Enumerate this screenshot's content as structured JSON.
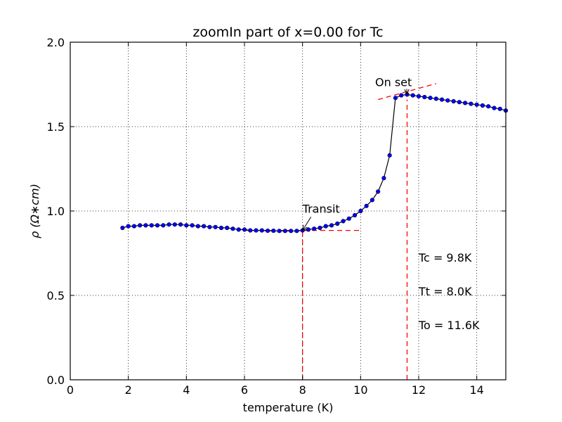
{
  "chart_data": {
    "type": "line",
    "title": "zoomIn part of x=0.00 for Tc",
    "xlabel": "temperature (K)",
    "ylabel": "ρ (Ω∗cm)",
    "xlim": [
      0,
      15
    ],
    "ylim": [
      0.0,
      2.0
    ],
    "xticks": [
      0,
      2,
      4,
      6,
      8,
      10,
      12,
      14
    ],
    "xtick_labels": [
      "0",
      "2",
      "4",
      "6",
      "8",
      "10",
      "12",
      "14"
    ],
    "yticks": [
      0.0,
      0.5,
      1.0,
      1.5,
      2.0
    ],
    "ytick_labels": [
      "0.0",
      "0.5",
      "1.0",
      "1.5",
      "2.0"
    ],
    "grid": true,
    "series": [
      {
        "color": "#0000ff",
        "line_color": "#000000",
        "marker": "circle",
        "x": [
          1.8,
          2.0,
          2.2,
          2.4,
          2.6,
          2.8,
          3.0,
          3.2,
          3.4,
          3.6,
          3.8,
          4.0,
          4.2,
          4.4,
          4.6,
          4.8,
          5.0,
          5.2,
          5.4,
          5.6,
          5.8,
          6.0,
          6.2,
          6.4,
          6.6,
          6.8,
          7.0,
          7.2,
          7.4,
          7.6,
          7.8,
          8.0,
          8.2,
          8.4,
          8.6,
          8.8,
          9.0,
          9.2,
          9.4,
          9.6,
          9.8,
          10.0,
          10.2,
          10.4,
          10.6,
          10.8,
          11.0,
          11.2,
          11.4,
          11.6,
          11.8,
          12.0,
          12.2,
          12.4,
          12.6,
          12.8,
          13.0,
          13.2,
          13.4,
          13.6,
          13.8,
          14.0,
          14.2,
          14.4,
          14.6,
          14.8,
          15.0
        ],
        "y": [
          0.9,
          0.91,
          0.91,
          0.915,
          0.915,
          0.915,
          0.915,
          0.915,
          0.92,
          0.92,
          0.92,
          0.915,
          0.915,
          0.91,
          0.91,
          0.905,
          0.905,
          0.9,
          0.9,
          0.895,
          0.89,
          0.89,
          0.885,
          0.885,
          0.885,
          0.883,
          0.883,
          0.882,
          0.882,
          0.882,
          0.882,
          0.885,
          0.89,
          0.895,
          0.9,
          0.91,
          0.915,
          0.925,
          0.94,
          0.955,
          0.975,
          1.0,
          1.03,
          1.065,
          1.115,
          1.195,
          1.33,
          1.67,
          1.685,
          1.69,
          1.685,
          1.68,
          1.675,
          1.67,
          1.665,
          1.66,
          1.655,
          1.65,
          1.645,
          1.64,
          1.635,
          1.63,
          1.625,
          1.62,
          1.61,
          1.605,
          1.595
        ]
      }
    ],
    "reference_lines": [
      {
        "color": "#ff0000",
        "style": "dashed",
        "x": [
          6.0,
          10.0
        ],
        "y": [
          0.885,
          0.885
        ]
      },
      {
        "color": "#ff0000",
        "style": "dashed",
        "x": [
          8.0,
          8.0
        ],
        "y": [
          0.0,
          0.885
        ]
      },
      {
        "color": "#ff0000",
        "style": "dashed",
        "x": [
          11.6,
          11.6
        ],
        "y": [
          0.0,
          1.66
        ]
      },
      {
        "color": "#ff0000",
        "style": "dashed",
        "x": [
          10.6,
          12.6
        ],
        "y": [
          1.66,
          1.755
        ]
      }
    ],
    "annotations": [
      {
        "text": "Transit",
        "text_x": 8.0,
        "text_y": 0.99,
        "arrow_to_x": 8.0,
        "arrow_to_y": 0.885
      },
      {
        "text": "On set",
        "text_x": 10.5,
        "text_y": 1.74,
        "arrow_to_x": 11.6,
        "arrow_to_y": 1.69
      }
    ],
    "text_notes": [
      {
        "text": "Tc = 9.8K",
        "x": 12.0,
        "y": 0.7
      },
      {
        "text": "Tt = 8.0K",
        "x": 12.0,
        "y": 0.5
      },
      {
        "text": "To = 11.6K",
        "x": 12.0,
        "y": 0.3
      }
    ]
  }
}
